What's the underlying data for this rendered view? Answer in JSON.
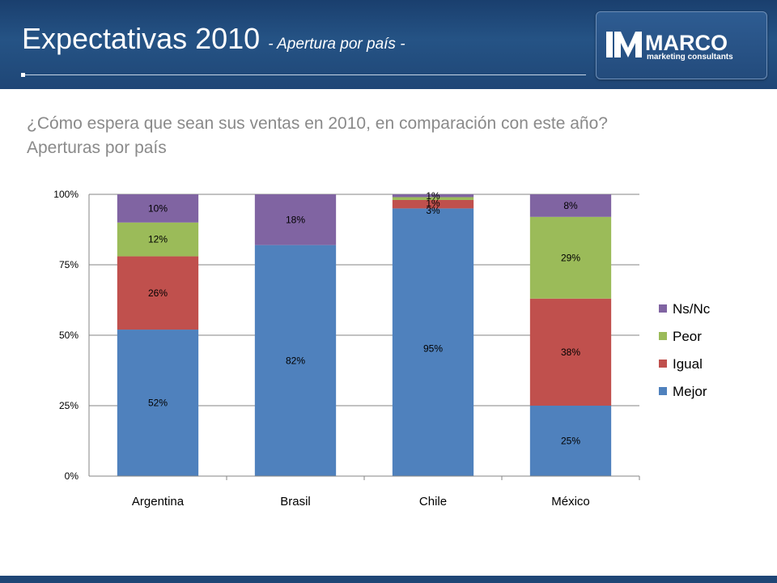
{
  "header": {
    "title_main": "Expectativas 2010",
    "title_sub": "- Apertura por país -"
  },
  "logo": {
    "name": "MARCO",
    "tagline": "marketing consultants"
  },
  "question": {
    "line1": "¿Cómo espera que sean sus ventas en 2010, en comparación con este año?",
    "line2": "Aperturas por país"
  },
  "colors": {
    "header_bg": "#255385",
    "Mejor": "#4f81bd",
    "Igual": "#c0504d",
    "Peor": "#9bbb59",
    "Ns/Nc": "#8064a2"
  },
  "chart_data": {
    "type": "bar",
    "stacked": true,
    "categories": [
      "Argentina",
      "Brasil",
      "Chile",
      "México"
    ],
    "series": [
      {
        "name": "Mejor",
        "color": "#4f81bd",
        "values": [
          52,
          82,
          95,
          25
        ],
        "labels": [
          "52%",
          "82%",
          "95%",
          "25%"
        ]
      },
      {
        "name": "Igual",
        "color": "#c0504d",
        "values": [
          26,
          0,
          3,
          38
        ],
        "labels": [
          "26%",
          "",
          "3%",
          "38%"
        ]
      },
      {
        "name": "Peor",
        "color": "#9bbb59",
        "values": [
          12,
          0,
          1,
          29
        ],
        "labels": [
          "12%",
          "",
          "1%",
          "29%"
        ]
      },
      {
        "name": "Ns/Nc",
        "color": "#8064a2",
        "values": [
          10,
          18,
          1,
          8
        ],
        "labels": [
          "10%",
          "18%",
          "1%",
          "8%"
        ]
      }
    ],
    "yticks": [
      "0%",
      "25%",
      "50%",
      "75%",
      "100%"
    ],
    "ylim": [
      0,
      100
    ],
    "legend_position": "right",
    "legend_order": [
      "Ns/Nc",
      "Peor",
      "Igual",
      "Mejor"
    ],
    "grid": true
  }
}
